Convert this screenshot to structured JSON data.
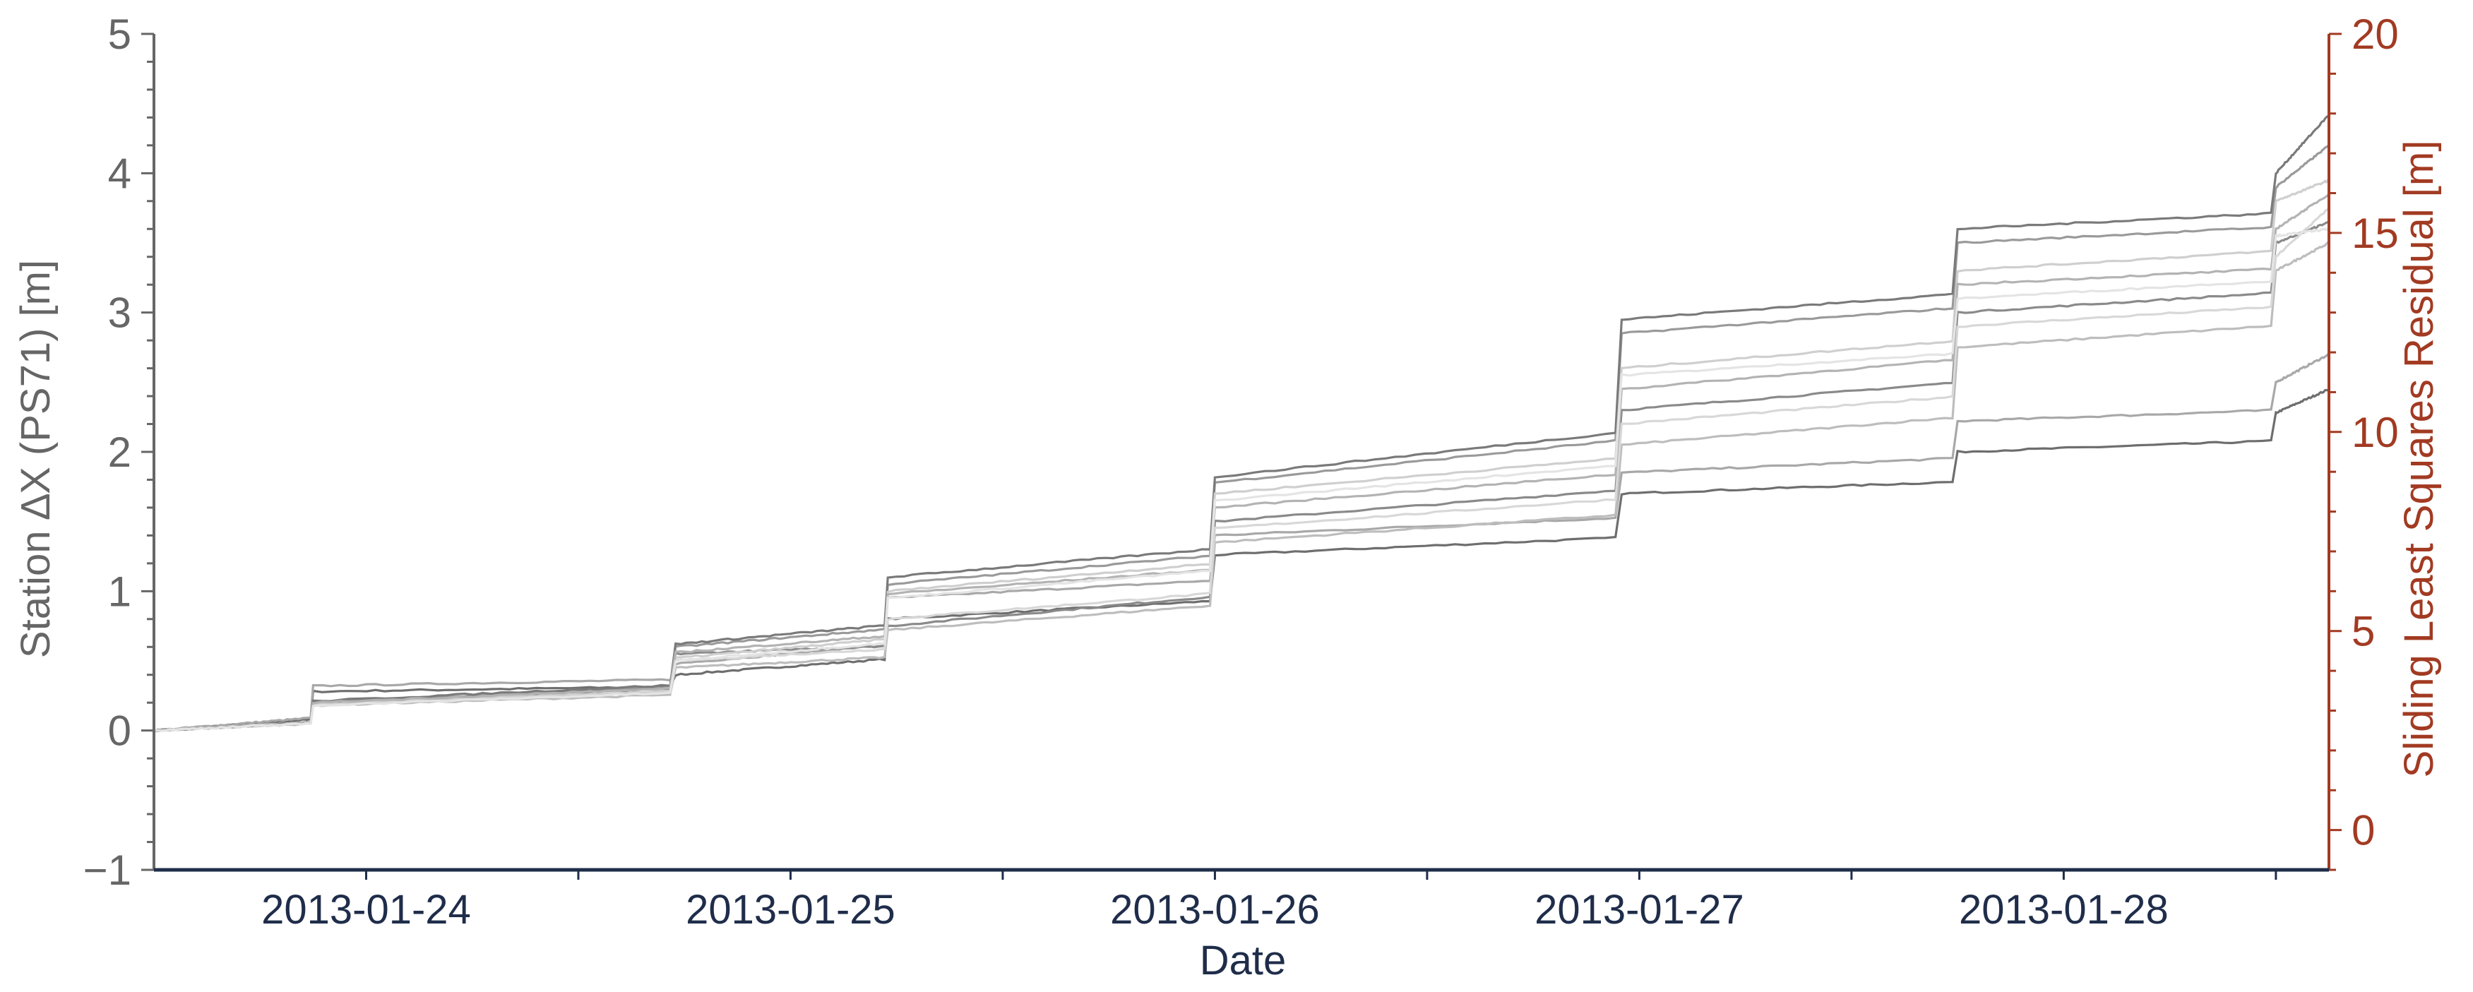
{
  "chart_data": {
    "type": "line",
    "title": "",
    "xlabel": "Date",
    "ylabel_left": "Station ∆X (PS71) [m]",
    "ylabel_right": "Sliding Least Squares Residual [m]",
    "x_range": [
      "2013-01-23 12:00",
      "2013-01-28 15:00"
    ],
    "x_ticks_labeled": [
      "2013-01-24",
      "2013-01-25",
      "2013-01-26",
      "2013-01-27",
      "2013-01-28"
    ],
    "ylim_left": [
      -1,
      5
    ],
    "yticks_left": [
      "−1",
      "0",
      "1",
      "2",
      "3",
      "4",
      "5"
    ],
    "ylim_right": [
      -1,
      20
    ],
    "yticks_right": [
      "0",
      "5",
      "10",
      "15",
      "20"
    ],
    "grid": false,
    "legend": "none",
    "colors": {
      "left_axis": "#666666",
      "right_axis": "#A23A22",
      "x_axis": "#1F2D4A"
    },
    "step_times": [
      "2013-01-23 21:00",
      "2013-01-24 17:30",
      "2013-01-25 05:30",
      "2013-01-26 00:00",
      "2013-01-26 23:00",
      "2013-01-27 18:00",
      "2013-01-28 12:00"
    ],
    "series": [
      {
        "color": "#6e6e6e",
        "values": [
          [
            0,
            0.0
          ],
          [
            1,
            0.28
          ],
          [
            2,
            0.4
          ],
          [
            3,
            0.8
          ],
          [
            4,
            1.26
          ],
          [
            5,
            1.7
          ],
          [
            6,
            2.0
          ],
          [
            7,
            2.28
          ],
          [
            8,
            2.45
          ]
        ]
      },
      {
        "color": "#a8a8a8",
        "values": [
          [
            0,
            0.0
          ],
          [
            1,
            0.32
          ],
          [
            2,
            0.48
          ],
          [
            3,
            0.95
          ],
          [
            4,
            1.4
          ],
          [
            5,
            1.85
          ],
          [
            6,
            2.22
          ],
          [
            7,
            2.5
          ],
          [
            8,
            2.7
          ]
        ]
      },
      {
        "color": "#8a8a8a",
        "values": [
          [
            0,
            0.0
          ],
          [
            1,
            0.2
          ],
          [
            2,
            0.55
          ],
          [
            3,
            0.75
          ],
          [
            4,
            1.5
          ],
          [
            5,
            2.3
          ],
          [
            6,
            3.0
          ],
          [
            7,
            3.5
          ],
          [
            8,
            3.65
          ]
        ]
      },
      {
        "color": "#bdbdbd",
        "values": [
          [
            0,
            0.0
          ],
          [
            1,
            0.18
          ],
          [
            2,
            0.45
          ],
          [
            3,
            0.72
          ],
          [
            4,
            1.35
          ],
          [
            5,
            2.05
          ],
          [
            6,
            2.75
          ],
          [
            7,
            3.3
          ],
          [
            8,
            3.5
          ]
        ]
      },
      {
        "color": "#d8d8d8",
        "values": [
          [
            0,
            0.0
          ],
          [
            1,
            0.19
          ],
          [
            2,
            0.5
          ],
          [
            3,
            0.8
          ],
          [
            4,
            1.45
          ],
          [
            5,
            2.2
          ],
          [
            6,
            2.9
          ],
          [
            7,
            3.4
          ],
          [
            8,
            3.75
          ]
        ]
      },
      {
        "color": "#9a9a9a",
        "values": [
          [
            0,
            0.0
          ],
          [
            1,
            0.2
          ],
          [
            2,
            0.6
          ],
          [
            3,
            1.05
          ],
          [
            4,
            1.78
          ],
          [
            5,
            2.85
          ],
          [
            6,
            3.5
          ],
          [
            7,
            3.9
          ],
          [
            8,
            4.2
          ]
        ]
      },
      {
        "color": "#7a7a7a",
        "values": [
          [
            0,
            0.0
          ],
          [
            1,
            0.21
          ],
          [
            2,
            0.62
          ],
          [
            3,
            1.1
          ],
          [
            4,
            1.82
          ],
          [
            5,
            2.95
          ],
          [
            6,
            3.6
          ],
          [
            7,
            4.0
          ],
          [
            8,
            4.42
          ]
        ]
      },
      {
        "color": "#cfcfcf",
        "values": [
          [
            0,
            0.0
          ],
          [
            1,
            0.19
          ],
          [
            2,
            0.52
          ],
          [
            3,
            1.0
          ],
          [
            4,
            1.7
          ],
          [
            5,
            2.6
          ],
          [
            6,
            3.3
          ],
          [
            7,
            3.8
          ],
          [
            8,
            3.95
          ]
        ]
      },
      {
        "color": "#b3b3b3",
        "values": [
          [
            0,
            0.0
          ],
          [
            1,
            0.2
          ],
          [
            2,
            0.56
          ],
          [
            3,
            0.98
          ],
          [
            4,
            1.6
          ],
          [
            5,
            2.45
          ],
          [
            6,
            3.2
          ],
          [
            7,
            3.6
          ],
          [
            8,
            3.85
          ]
        ]
      },
      {
        "color": "#e4e4e4",
        "values": [
          [
            0,
            0.0
          ],
          [
            1,
            0.18
          ],
          [
            2,
            0.5
          ],
          [
            3,
            0.95
          ],
          [
            4,
            1.65
          ],
          [
            5,
            2.55
          ],
          [
            6,
            3.1
          ],
          [
            7,
            3.55
          ],
          [
            8,
            3.6
          ]
        ]
      }
    ]
  }
}
